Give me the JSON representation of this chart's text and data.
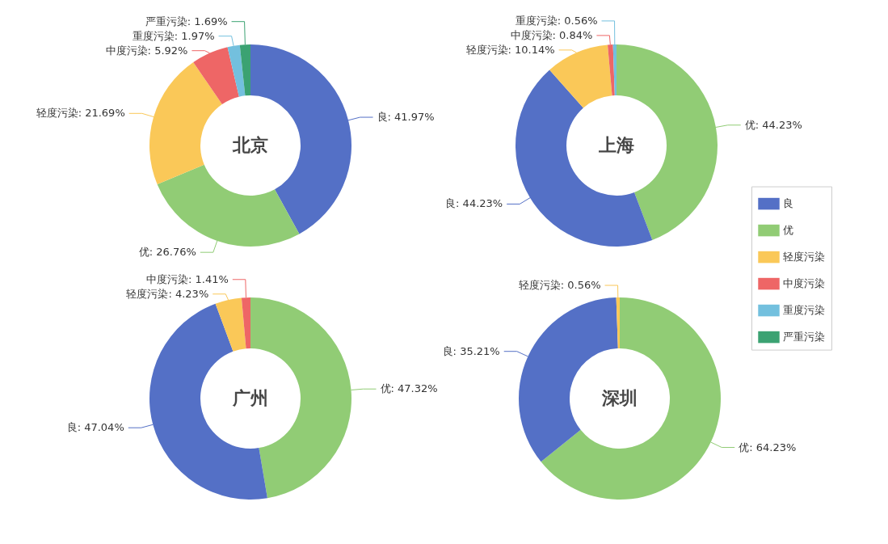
{
  "chart_data": [
    {
      "type": "donut",
      "title": "北京",
      "categories": [
        "良",
        "优",
        "轻度污染",
        "中度污染",
        "重度污染",
        "严重污染"
      ],
      "values": [
        41.97,
        26.76,
        21.69,
        5.92,
        1.97,
        1.69
      ],
      "colors": [
        "#5470c6",
        "#91cc75",
        "#fac858",
        "#ee6666",
        "#73c0de",
        "#3ba272"
      ],
      "value_labels": [
        ": 41.97%",
        ": 26.76%",
        ": 21.69%",
        ": 5.92%",
        ": 1.97%",
        ": 1.69%"
      ],
      "legend": "right"
    },
    {
      "type": "donut",
      "title": "上海",
      "categories": [
        "优",
        "良",
        "轻度污染",
        "中度污染",
        "重度污染"
      ],
      "values": [
        44.23,
        44.23,
        10.14,
        0.84,
        0.56
      ],
      "colors": [
        "#91cc75",
        "#5470c6",
        "#fac858",
        "#ee6666",
        "#73c0de"
      ],
      "value_labels": [
        ": 44.23%",
        ": 44.23%",
        ": 10.14%",
        ": 0.84%",
        ": 0.56%"
      ]
    },
    {
      "type": "donut",
      "title": "广州",
      "categories": [
        "优",
        "良",
        "轻度污染",
        "中度污染"
      ],
      "values": [
        47.32,
        47.04,
        4.23,
        1.41
      ],
      "colors": [
        "#91cc75",
        "#5470c6",
        "#fac858",
        "#ee6666"
      ],
      "value_labels": [
        ": 47.32%",
        ": 47.04%",
        ": 4.23%",
        ": 1.41%"
      ]
    },
    {
      "type": "donut",
      "title": "深圳",
      "categories": [
        "优",
        "良",
        "轻度污染"
      ],
      "values": [
        64.23,
        35.21,
        0.56
      ],
      "colors": [
        "#91cc75",
        "#5470c6",
        "#fac858"
      ],
      "value_labels": [
        ": 64.23%",
        ": 35.21%",
        ": 0.56%"
      ]
    }
  ]
}
